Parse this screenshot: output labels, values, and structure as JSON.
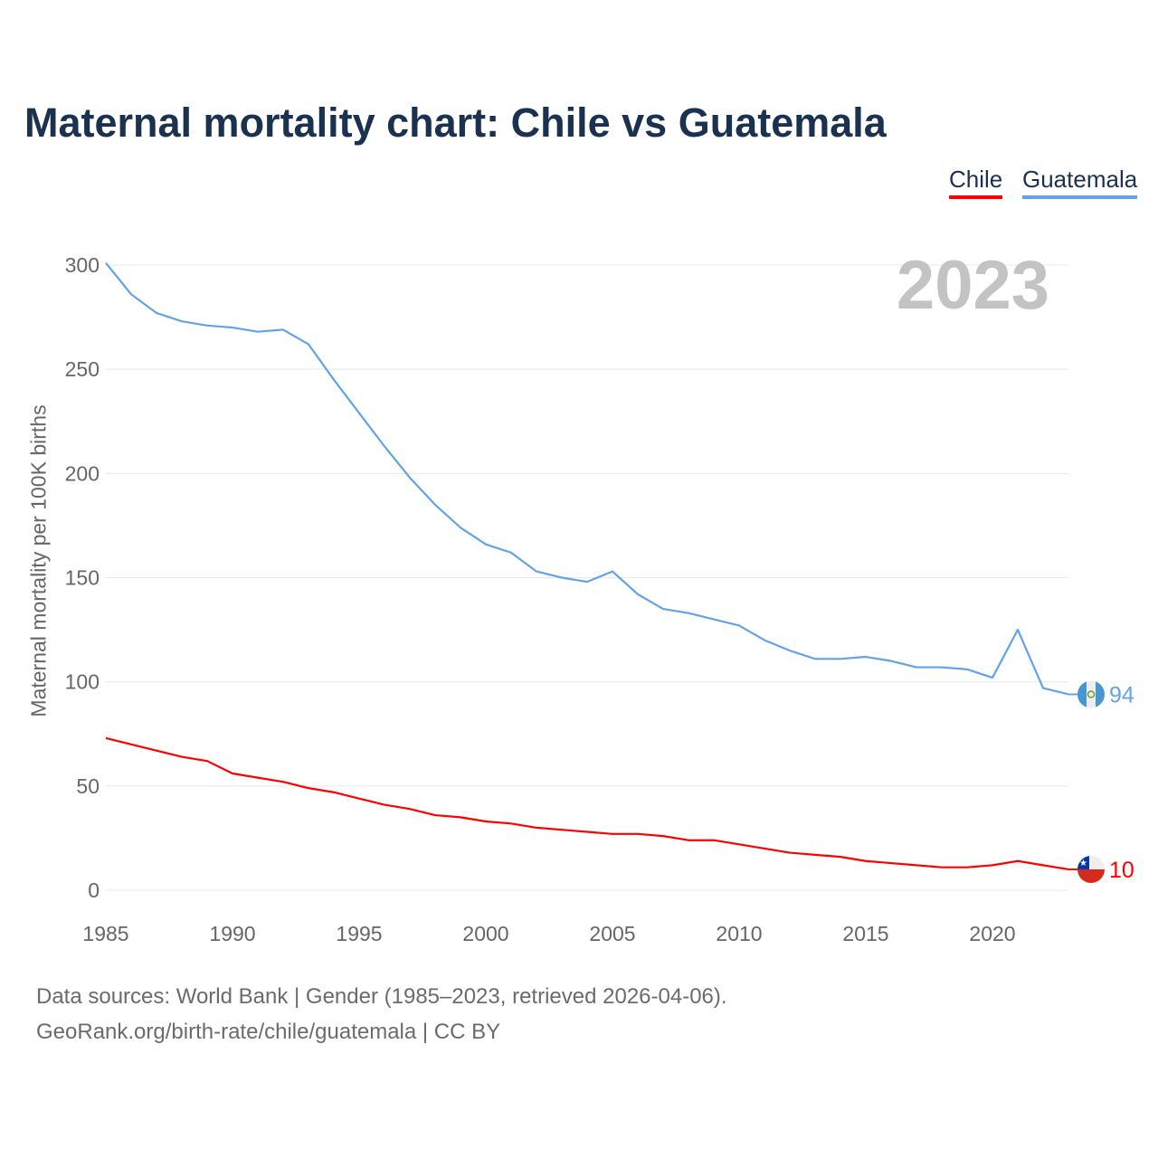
{
  "chart_data": {
    "type": "line",
    "title": "Maternal mortality chart: Chile vs Guatemala",
    "ylabel": "Maternal mortality per 100K births",
    "xlabel": "",
    "year_label": "2023",
    "ylim": [
      0,
      300
    ],
    "xlim": [
      1985,
      2023
    ],
    "yticks": [
      "0",
      "50",
      "100",
      "150",
      "200",
      "250",
      "300"
    ],
    "xticks": [
      "1985",
      "1990",
      "1995",
      "2000",
      "2005",
      "2010",
      "2015",
      "2020"
    ],
    "grid": true,
    "legend_position": "top-right",
    "x": [
      1985,
      1986,
      1987,
      1988,
      1989,
      1990,
      1991,
      1992,
      1993,
      1994,
      1995,
      1996,
      1997,
      1998,
      1999,
      2000,
      2001,
      2002,
      2003,
      2004,
      2005,
      2006,
      2007,
      2008,
      2009,
      2010,
      2011,
      2012,
      2013,
      2014,
      2015,
      2016,
      2017,
      2018,
      2019,
      2020,
      2021,
      2022,
      2023
    ],
    "series": [
      {
        "name": "Chile",
        "color": "#ff0000",
        "end_label": "10",
        "values": [
          73,
          70,
          67,
          64,
          62,
          56,
          54,
          52,
          49,
          47,
          44,
          41,
          39,
          36,
          35,
          33,
          32,
          30,
          29,
          28,
          27,
          27,
          26,
          24,
          24,
          22,
          20,
          18,
          17,
          16,
          14,
          13,
          12,
          11,
          11,
          12,
          14,
          12,
          10
        ]
      },
      {
        "name": "Guatemala",
        "color": "#62a3e8",
        "end_label": "94",
        "values": [
          301,
          286,
          277,
          273,
          271,
          270,
          268,
          269,
          262,
          245,
          229,
          213,
          198,
          185,
          174,
          166,
          162,
          153,
          150,
          148,
          153,
          142,
          135,
          133,
          130,
          127,
          120,
          115,
          111,
          111,
          112,
          110,
          107,
          107,
          106,
          102,
          125,
          97,
          94
        ]
      }
    ]
  },
  "footer": {
    "line1": "Data sources: World Bank | Gender (1985–2023, retrieved 2026-04-06).",
    "line2": "GeoRank.org/birth-rate/chile/guatemala | CC BY"
  }
}
